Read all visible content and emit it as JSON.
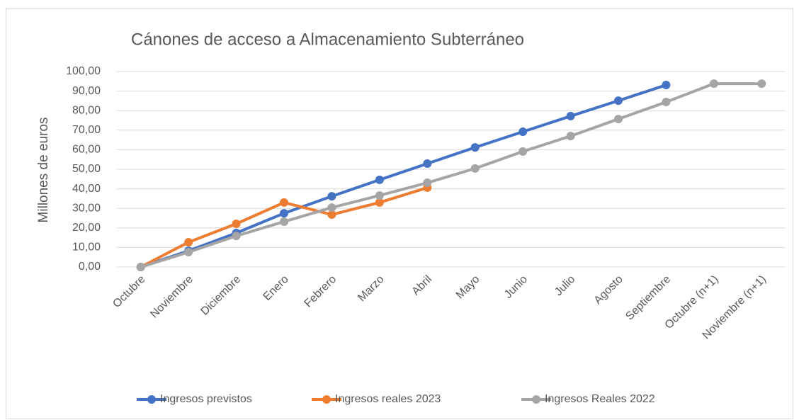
{
  "chart_data": {
    "type": "line",
    "title": "Cánones de acceso a Almacenamiento Subterráneo",
    "y_label": "Millones de euros",
    "categories": [
      "Octubre",
      "Noviembre",
      "Diciembre",
      "Enero",
      "Febrero",
      "Marzo",
      "Abril",
      "Mayo",
      "Junio",
      "Julio",
      "Agosto",
      "Septiembre",
      "Octubre (n+1)",
      "Noviembre (n+1)"
    ],
    "series": [
      {
        "name": "Ingresos previstos",
        "color": "#4472c4",
        "values": [
          0,
          8.3,
          17.4,
          27.5,
          36.2,
          44.6,
          52.9,
          61.2,
          69.2,
          77.2,
          85.1,
          93.1,
          null,
          null
        ]
      },
      {
        "name": "Ingresos reales 2023",
        "color": "#ed7d31",
        "values": [
          0,
          12.7,
          22.1,
          33.0,
          26.8,
          33.0,
          40.6,
          null,
          null,
          null,
          null,
          null,
          null,
          null
        ]
      },
      {
        "name": "Ingresos Reales 2022",
        "color": "#a5a5a5",
        "values": [
          0,
          7.6,
          15.9,
          23.2,
          30.4,
          36.6,
          43.1,
          50.4,
          59.1,
          67.0,
          75.7,
          84.4,
          93.8,
          93.8
        ]
      }
    ],
    "ylim": [
      0,
      100
    ],
    "yticks": [
      {
        "value": 0,
        "label": "0,00"
      },
      {
        "value": 10,
        "label": "10,00"
      },
      {
        "value": 20,
        "label": "20,00"
      },
      {
        "value": 30,
        "label": "30,00"
      },
      {
        "value": 40,
        "label": "40,00"
      },
      {
        "value": 50,
        "label": "50,00"
      },
      {
        "value": 60,
        "label": "60,00"
      },
      {
        "value": 70,
        "label": "70,00"
      },
      {
        "value": 80,
        "label": "80,00"
      },
      {
        "value": 90,
        "label": "90,00"
      },
      {
        "value": 100,
        "label": "100,00"
      }
    ],
    "grid": true,
    "legend": "bottom"
  }
}
